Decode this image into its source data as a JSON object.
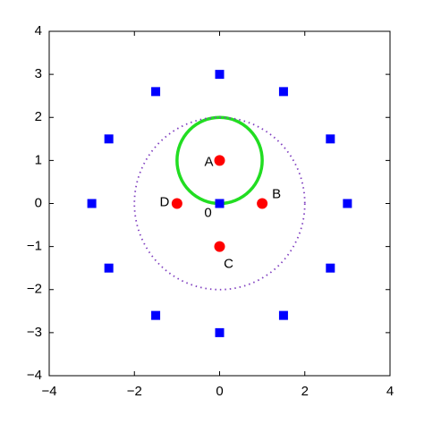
{
  "chart_data": {
    "type": "scatter",
    "xlim": [
      -4,
      4
    ],
    "ylim": [
      -4,
      4
    ],
    "xticks": [
      {
        "value": -4,
        "label": "−4"
      },
      {
        "value": -2,
        "label": "−2"
      },
      0,
      2,
      4
    ],
    "yticks": [
      {
        "value": -4,
        "label": "−4"
      },
      {
        "value": -3,
        "label": "−3"
      },
      {
        "value": -2,
        "label": "−2"
      },
      {
        "value": -1,
        "label": "−1"
      },
      0,
      1,
      2,
      3,
      4
    ],
    "series": [
      {
        "color": "#0000ff",
        "marker": "square",
        "x": [
          0,
          1.5,
          2.6,
          3,
          2.6,
          1.5,
          0,
          -1.5,
          -2.6,
          -3,
          -2.6,
          -1.5,
          0
        ],
        "y": [
          3,
          2.6,
          1.5,
          0,
          -1.5,
          -2.6,
          -3,
          -2.6,
          -1.5,
          0,
          1.5,
          2.6,
          0
        ]
      },
      {
        "color": "#ff0000",
        "marker": "circle",
        "x": [
          0,
          1,
          0,
          -1
        ],
        "y": [
          1,
          0,
          -1,
          0
        ],
        "point_labels": [
          "A",
          "B",
          "C",
          "D"
        ]
      }
    ],
    "circles": [
      {
        "cx": 0,
        "cy": 1,
        "r": 1,
        "color": "#22dd22",
        "style": "solid"
      },
      {
        "cx": 0,
        "cy": 0,
        "r": 2,
        "color": "#8040c0",
        "style": "dotted"
      }
    ],
    "annotations": [
      {
        "text": "0",
        "x": 0,
        "y": 0
      }
    ]
  }
}
